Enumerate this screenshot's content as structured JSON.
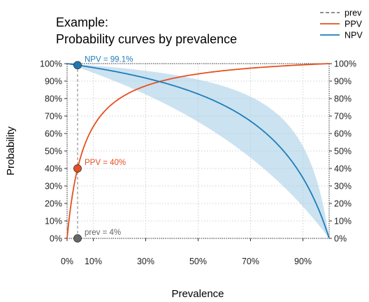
{
  "chart_data": {
    "type": "line",
    "title_line1": "Example:",
    "title_line2": "Probability curves by prevalence",
    "xlabel": "Prevalence",
    "ylabel": "Probability",
    "xlim": [
      0,
      1
    ],
    "ylim": [
      0,
      1
    ],
    "x_ticks": [
      {
        "value": 0.0,
        "label": "0%"
      },
      {
        "value": 0.1,
        "label": "10%"
      },
      {
        "value": 0.3,
        "label": "30%"
      },
      {
        "value": 0.5,
        "label": "50%"
      },
      {
        "value": 0.7,
        "label": "70%"
      },
      {
        "value": 0.9,
        "label": "90%"
      }
    ],
    "y_ticks": [
      {
        "value": 0.0,
        "label": "0%"
      },
      {
        "value": 0.1,
        "label": "10%"
      },
      {
        "value": 0.2,
        "label": "20%"
      },
      {
        "value": 0.3,
        "label": "30%"
      },
      {
        "value": 0.4,
        "label": "40%"
      },
      {
        "value": 0.5,
        "label": "50%"
      },
      {
        "value": 0.6,
        "label": "60%"
      },
      {
        "value": 0.7,
        "label": "70%"
      },
      {
        "value": 0.8,
        "label": "80%"
      },
      {
        "value": 0.9,
        "label": "90%"
      },
      {
        "value": 1.0,
        "label": "100%"
      }
    ],
    "grid": true,
    "legend_position": "top-right",
    "sensitivity": 0.8,
    "specificity": 0.95,
    "sensitivity_range": [
      0.6,
      0.9
    ],
    "specificity_range": [
      0.8,
      1.0
    ],
    "series": [
      {
        "name": "prev",
        "style": "dashed",
        "color": "#7f7f7f",
        "x": [
          0.04,
          0.04
        ],
        "y": [
          0,
          1
        ]
      },
      {
        "name": "PPV",
        "style": "solid",
        "color": "#e6501e",
        "band_color": "#f7bba6"
      },
      {
        "name": "NPV",
        "style": "solid",
        "color": "#1f7db8",
        "band_color": "#a9cfe8"
      }
    ],
    "annotations": [
      {
        "text": "NPV = 99.1%",
        "x": 0.04,
        "y": 0.991,
        "color": "#1f7db8",
        "marker_color": "#1f77b4"
      },
      {
        "text": "PPV = 40%",
        "x": 0.04,
        "y": 0.4,
        "color": "#e6501e",
        "marker_color": "#e6501e"
      },
      {
        "text": "prev = 4%",
        "x": 0.04,
        "y": 0.0,
        "color": "#666666",
        "marker_color": "#666666"
      }
    ]
  }
}
